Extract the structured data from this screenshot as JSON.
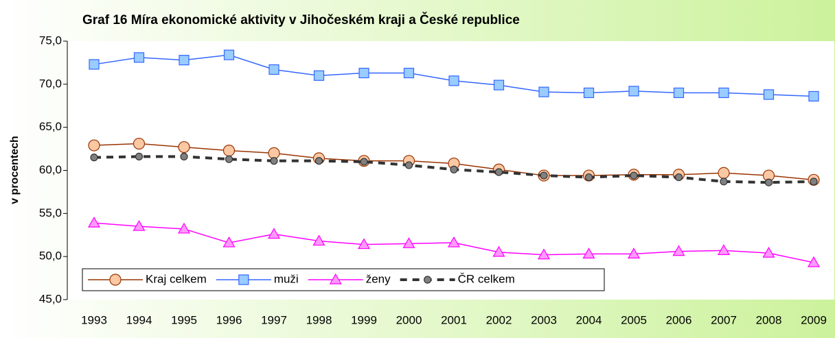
{
  "chart_data": {
    "type": "line",
    "title": "Graf 16 Míra ekonomické aktivity v Jihočeském kraji a České republice",
    "y_label": "v procentech",
    "categories": [
      "1993",
      "1994",
      "1995",
      "1996",
      "1997",
      "1998",
      "1999",
      "2000",
      "2001",
      "2002",
      "2003",
      "2004",
      "2005",
      "2006",
      "2007",
      "2008",
      "2009"
    ],
    "series": [
      {
        "name": "Kraj celkem",
        "color": "#993300",
        "marker": "circle",
        "marker_color": "#fbc8a4",
        "dashed": false,
        "values": [
          62.9,
          63.1,
          62.7,
          62.3,
          62.0,
          61.4,
          61.1,
          61.1,
          60.8,
          60.1,
          59.4,
          59.4,
          59.5,
          59.5,
          59.7,
          59.4,
          58.9
        ]
      },
      {
        "name": "muži",
        "color": "#3366ff",
        "marker": "square",
        "marker_color": "#99ccff",
        "dashed": false,
        "values": [
          72.3,
          73.1,
          72.8,
          73.4,
          71.7,
          71.0,
          71.3,
          71.3,
          70.4,
          69.9,
          69.1,
          69.0,
          69.2,
          69.0,
          69.0,
          68.8,
          68.6
        ]
      },
      {
        "name": "ženy",
        "color": "#ff00ff",
        "marker": "triangle",
        "marker_color": "#ff99ff",
        "dashed": false,
        "values": [
          53.9,
          53.5,
          53.2,
          51.6,
          52.6,
          51.8,
          51.4,
          51.5,
          51.6,
          50.5,
          50.2,
          50.3,
          50.3,
          50.6,
          50.7,
          50.4,
          49.3
        ]
      },
      {
        "name": "ČR celkem",
        "color": "#333333",
        "marker": "circle",
        "marker_color": "#808080",
        "dashed": true,
        "values": [
          61.5,
          61.6,
          61.6,
          61.3,
          61.1,
          61.1,
          61.0,
          60.6,
          60.1,
          59.8,
          59.4,
          59.2,
          59.4,
          59.2,
          58.7,
          58.6,
          58.7
        ]
      }
    ],
    "ylim": [
      45,
      75
    ],
    "yticks": [
      {
        "value": 45,
        "label": "45,0"
      },
      {
        "value": 50,
        "label": "50,0"
      },
      {
        "value": 55,
        "label": "55,0"
      },
      {
        "value": 60,
        "label": "60,0"
      },
      {
        "value": 65,
        "label": "65,0"
      },
      {
        "value": 70,
        "label": "70,0"
      },
      {
        "value": 75,
        "label": "75,0"
      }
    ],
    "legend": "bottom-left"
  }
}
